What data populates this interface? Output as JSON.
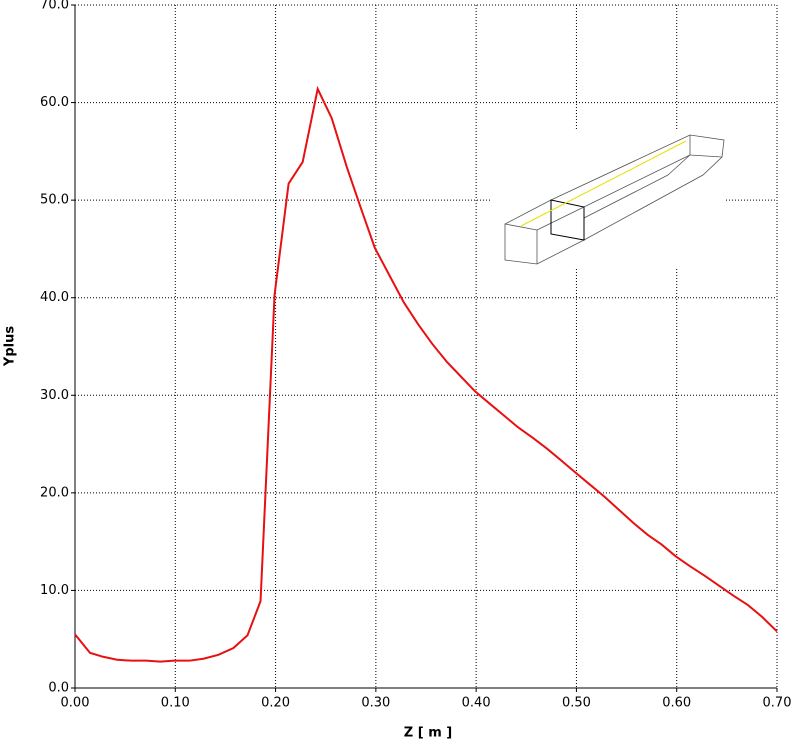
{
  "chart_data": {
    "type": "line",
    "xlabel": "Z [ m ]",
    "ylabel": "Yplus",
    "x": [
      0,
      0.015,
      0.028,
      0.042,
      0.056,
      0.071,
      0.085,
      0.099,
      0.114,
      0.128,
      0.143,
      0.158,
      0.172,
      0.185,
      0.199,
      0.213,
      0.227,
      0.242,
      0.256,
      0.271,
      0.285,
      0.299,
      0.314,
      0.328,
      0.342,
      0.356,
      0.371,
      0.385,
      0.399,
      0.414,
      0.428,
      0.442,
      0.457,
      0.471,
      0.485,
      0.5,
      0.514,
      0.528,
      0.543,
      0.557,
      0.571,
      0.585,
      0.599,
      0.613,
      0.628,
      0.642,
      0.656,
      0.671,
      0.685,
      0.7
    ],
    "series": [
      {
        "color": "#e81010",
        "values": [
          5.5,
          3.6,
          3.2,
          2.9,
          2.8,
          2.8,
          2.7,
          2.8,
          2.8,
          3.0,
          3.4,
          4.1,
          5.4,
          8.9,
          40.3,
          51.7,
          53.9,
          61.4,
          58.4,
          53.4,
          49.2,
          45.1,
          42.2,
          39.5,
          37.3,
          35.3,
          33.4,
          31.9,
          30.4,
          29.1,
          27.9,
          26.7,
          25.6,
          24.5,
          23.3,
          22.0,
          20.8,
          19.6,
          18.2,
          16.9,
          15.7,
          14.7,
          13.5,
          12.5,
          11.5,
          10.5,
          9.5,
          8.5,
          7.3,
          5.8
        ]
      }
    ],
    "xlim": [
      0,
      0.7
    ],
    "xticks": [
      {
        "value": 0,
        "label": "0.00"
      },
      {
        "value": 0.1,
        "label": "0.10"
      },
      {
        "value": 0.2,
        "label": "0.20"
      },
      {
        "value": 0.3,
        "label": "0.30"
      },
      {
        "value": 0.4,
        "label": "0.40"
      },
      {
        "value": 0.5,
        "label": "0.50"
      },
      {
        "value": 0.6,
        "label": "0.60"
      },
      {
        "value": 0.7,
        "label": "0.70"
      }
    ],
    "ylim": [
      0,
      70
    ],
    "yticks": [
      {
        "value": 0,
        "label": "0.0"
      },
      {
        "value": 10,
        "label": "10.0"
      },
      {
        "value": 20,
        "label": "20.0"
      },
      {
        "value": 30,
        "label": "30.0"
      },
      {
        "value": 40,
        "label": "40.0"
      },
      {
        "value": 50,
        "label": "50.0"
      },
      {
        "value": 60,
        "label": "60.0"
      },
      {
        "value": 70,
        "label": "70.0"
      }
    ],
    "grid": true
  }
}
